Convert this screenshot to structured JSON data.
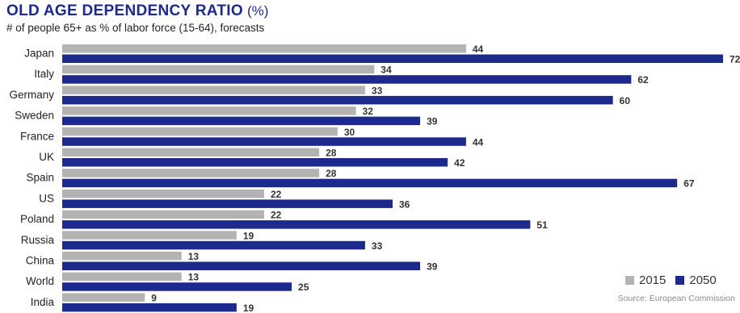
{
  "header": {
    "title": "OLD AGE DEPENDENCY RATIO",
    "title_unit": "(%)",
    "subtitle": "# of people 65+ as % of labor force (15-64), forecasts"
  },
  "source": "Source: European Commission",
  "colors": {
    "2015": "#b3b3b3",
    "2050": "#1b2a8c"
  },
  "chart_data": {
    "type": "bar",
    "orientation": "horizontal",
    "categories": [
      "Japan",
      "Italy",
      "Germany",
      "Sweden",
      "France",
      "UK",
      "Spain",
      "US",
      "Poland",
      "Russia",
      "China",
      "World",
      "India"
    ],
    "series": [
      {
        "name": "2015",
        "values": [
          44,
          34,
          33,
          32,
          30,
          28,
          28,
          22,
          22,
          19,
          13,
          13,
          9
        ]
      },
      {
        "name": "2050",
        "values": [
          72,
          62,
          60,
          39,
          44,
          42,
          67,
          36,
          51,
          33,
          39,
          25,
          19
        ]
      }
    ],
    "xlim": [
      0,
      72
    ],
    "grid": false,
    "data_labels": true,
    "legend_position": "bottom-right"
  }
}
